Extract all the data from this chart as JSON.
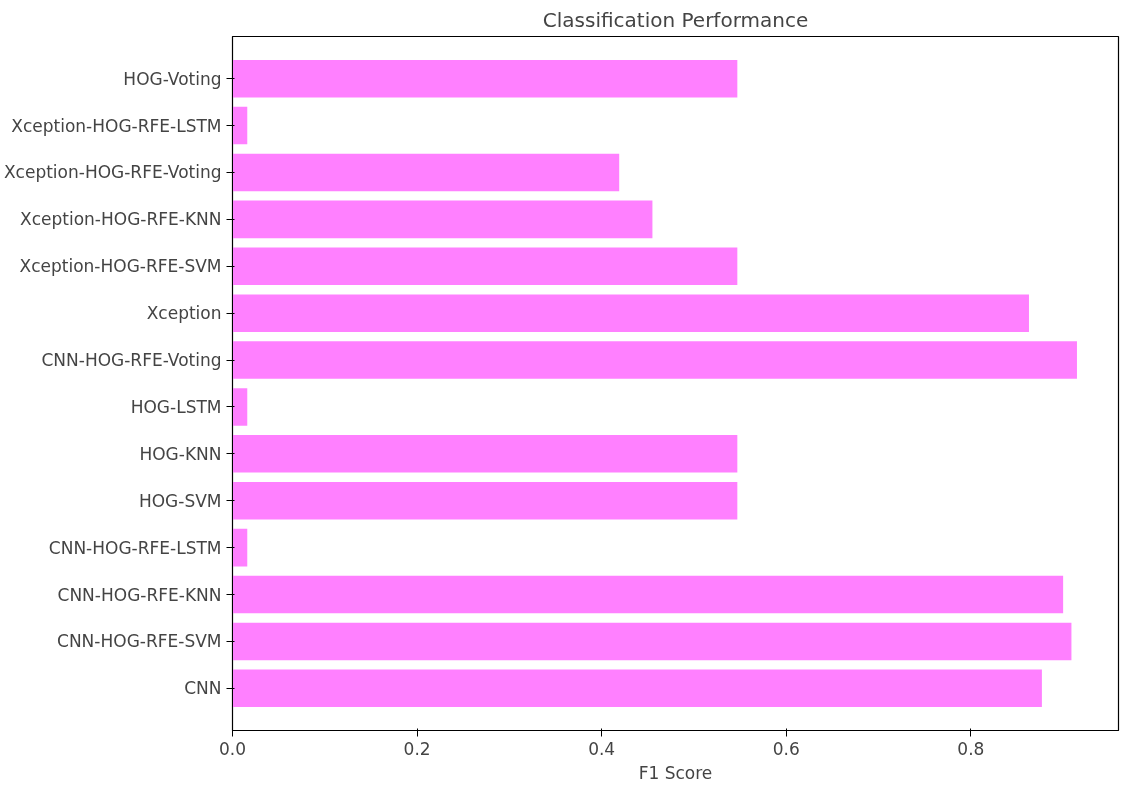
{
  "chart_data": {
    "type": "bar",
    "orientation": "horizontal",
    "title": "Classification Performance",
    "xlabel": "F1 Score",
    "categories": [
      "HOG-Voting",
      "Xception-HOG-RFE-LSTM",
      "Xception-HOG-RFE-Voting",
      "Xception-HOG-RFE-KNN",
      "Xception-HOG-RFE-SVM",
      "Xception",
      "CNN-HOG-RFE-Voting",
      "HOG-LSTM",
      "HOG-KNN",
      "HOG-SVM",
      "CNN-HOG-RFE-LSTM",
      "CNN-HOG-RFE-KNN",
      "CNN-HOG-RFE-SVM",
      "CNN"
    ],
    "values": [
      0.547,
      0.016,
      0.419,
      0.455,
      0.547,
      0.863,
      0.915,
      0.016,
      0.547,
      0.547,
      0.016,
      0.9,
      0.909,
      0.877
    ],
    "color": "#ff80ff",
    "xlim": [
      0,
      0.96
    ],
    "xticks": [
      {
        "value": 0,
        "label": "0.0"
      },
      {
        "value": 0.2,
        "label": "0.2"
      },
      {
        "value": 0.4,
        "label": "0.4"
      },
      {
        "value": 0.6,
        "label": "0.6"
      },
      {
        "value": 0.8,
        "label": "0.8"
      }
    ],
    "grid": false
  }
}
